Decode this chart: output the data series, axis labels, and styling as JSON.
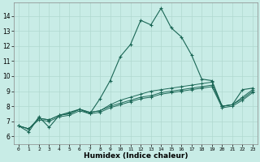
{
  "xlabel": "Humidex (Indice chaleur)",
  "ylabel": "",
  "x_ticks": [
    0,
    1,
    2,
    3,
    4,
    5,
    6,
    7,
    8,
    9,
    10,
    11,
    12,
    13,
    14,
    15,
    16,
    17,
    18,
    19,
    20,
    21,
    22,
    23
  ],
  "y_ticks": [
    6,
    7,
    8,
    9,
    10,
    11,
    12,
    13,
    14
  ],
  "ylim": [
    5.5,
    14.9
  ],
  "xlim": [
    -0.5,
    23.5
  ],
  "bg_color": "#c8ece6",
  "grid_color": "#b0d8d0",
  "line_color": "#1a6655",
  "series": [
    [
      6.7,
      6.3,
      7.3,
      6.6,
      7.4,
      7.6,
      7.8,
      7.5,
      8.5,
      9.7,
      11.3,
      12.1,
      13.7,
      13.4,
      14.5,
      13.2,
      12.6,
      11.4,
      9.8,
      9.7,
      8.0,
      8.1,
      9.1,
      9.2
    ],
    [
      6.7,
      6.5,
      7.2,
      7.1,
      7.4,
      7.5,
      7.8,
      7.6,
      7.7,
      8.1,
      8.4,
      8.6,
      8.8,
      9.0,
      9.1,
      9.2,
      9.3,
      9.4,
      9.5,
      9.6,
      8.0,
      8.1,
      8.6,
      9.1
    ],
    [
      6.7,
      6.5,
      7.2,
      7.1,
      7.4,
      7.5,
      7.8,
      7.6,
      7.7,
      8.0,
      8.2,
      8.4,
      8.6,
      8.7,
      8.9,
      9.0,
      9.1,
      9.2,
      9.3,
      9.4,
      8.0,
      8.1,
      8.5,
      9.0
    ],
    [
      6.7,
      6.5,
      7.1,
      7.0,
      7.3,
      7.4,
      7.7,
      7.5,
      7.6,
      7.9,
      8.1,
      8.3,
      8.5,
      8.6,
      8.8,
      8.9,
      9.0,
      9.1,
      9.2,
      9.3,
      7.9,
      8.0,
      8.4,
      8.9
    ]
  ],
  "x_fontsize": 4.5,
  "y_fontsize": 5.5,
  "xlabel_fontsize": 6.5,
  "line_width": 0.8,
  "marker_size": 3
}
